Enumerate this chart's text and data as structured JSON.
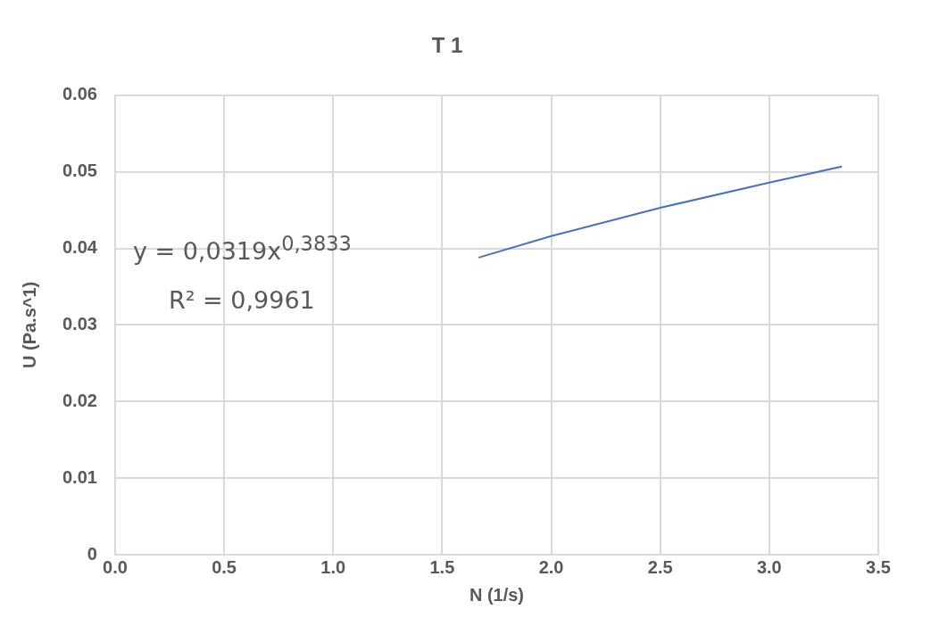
{
  "chart_data": {
    "type": "line",
    "title": "T 1",
    "xlabel": "N (1/s)",
    "ylabel": "U (Pa.s^1)",
    "x": [
      1.667,
      2.0,
      2.5,
      3.0,
      3.333
    ],
    "series": [
      {
        "color": "#4472c4",
        "values": [
          0.0388,
          0.0416,
          0.0453,
          0.0486,
          0.0507
        ]
      }
    ],
    "xlim": [
      0,
      3.5
    ],
    "xticks": [
      {
        "value": 0,
        "label": "0.0"
      },
      {
        "value": 0.5,
        "label": "0.5"
      },
      {
        "value": 1,
        "label": "1.0"
      },
      {
        "value": 1.5,
        "label": "1.5"
      },
      {
        "value": 2,
        "label": "2.0"
      },
      {
        "value": 2.5,
        "label": "2.5"
      },
      {
        "value": 3,
        "label": "3.0"
      },
      {
        "value": 3.5,
        "label": "3.5"
      }
    ],
    "ylim": [
      0,
      0.06
    ],
    "yticks": [
      0,
      0.01,
      0.02,
      0.03,
      0.04,
      0.05,
      0.06
    ],
    "grid": true,
    "legend": false,
    "marker": "none",
    "line_style": "solid",
    "annotations": [
      "y = 0,0319x$^{0,3833}$",
      "R² = 0,9961"
    ]
  }
}
